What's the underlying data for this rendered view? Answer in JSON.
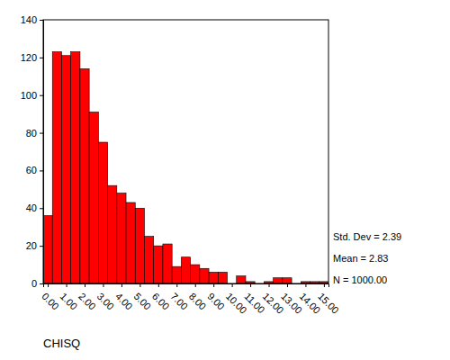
{
  "chart_data": {
    "type": "histogram",
    "x_label": "CHISQ",
    "annotations": [
      "Std. Dev = 2.39",
      "Mean = 2.83",
      "N = 1000.00"
    ],
    "bins": [
      -0.25,
      0.25,
      0.75,
      1.25,
      1.75,
      2.25,
      2.75,
      3.25,
      3.75,
      4.25,
      4.75,
      5.25,
      5.75,
      6.25,
      6.75,
      7.25,
      7.75,
      8.25,
      8.75,
      9.25,
      9.75,
      10.25,
      10.75,
      11.25,
      11.75,
      12.25,
      12.75,
      13.25,
      13.75,
      14.25,
      14.75,
      15.25
    ],
    "values": [
      36,
      123,
      121,
      123,
      114,
      91,
      75,
      52,
      48,
      43,
      40,
      25,
      20,
      21,
      9,
      14,
      10,
      8,
      6,
      6,
      0,
      4,
      1,
      0,
      1,
      3,
      3,
      0,
      1,
      1,
      1
    ],
    "color": "#ff0000",
    "xlim": [
      -0.25,
      15.25
    ],
    "xticks": [
      {
        "value": 0,
        "label": "0.00"
      },
      {
        "value": 1,
        "label": "1.00"
      },
      {
        "value": 2,
        "label": "2.00"
      },
      {
        "value": 3,
        "label": "3.00"
      },
      {
        "value": 4,
        "label": "4.00"
      },
      {
        "value": 5,
        "label": "5.00"
      },
      {
        "value": 6,
        "label": "6.00"
      },
      {
        "value": 7,
        "label": "7.00"
      },
      {
        "value": 8,
        "label": "8.00"
      },
      {
        "value": 9,
        "label": "9.00"
      },
      {
        "value": 10,
        "label": "10.00"
      },
      {
        "value": 11,
        "label": "11.00"
      },
      {
        "value": 12,
        "label": "12.00"
      },
      {
        "value": 13,
        "label": "13.00"
      },
      {
        "value": 14,
        "label": "14.00"
      },
      {
        "value": 15,
        "label": "15.00"
      }
    ],
    "ylim": [
      0,
      140
    ],
    "yticks": [
      0,
      20,
      40,
      60,
      80,
      100,
      120,
      140
    ],
    "grid": false
  }
}
